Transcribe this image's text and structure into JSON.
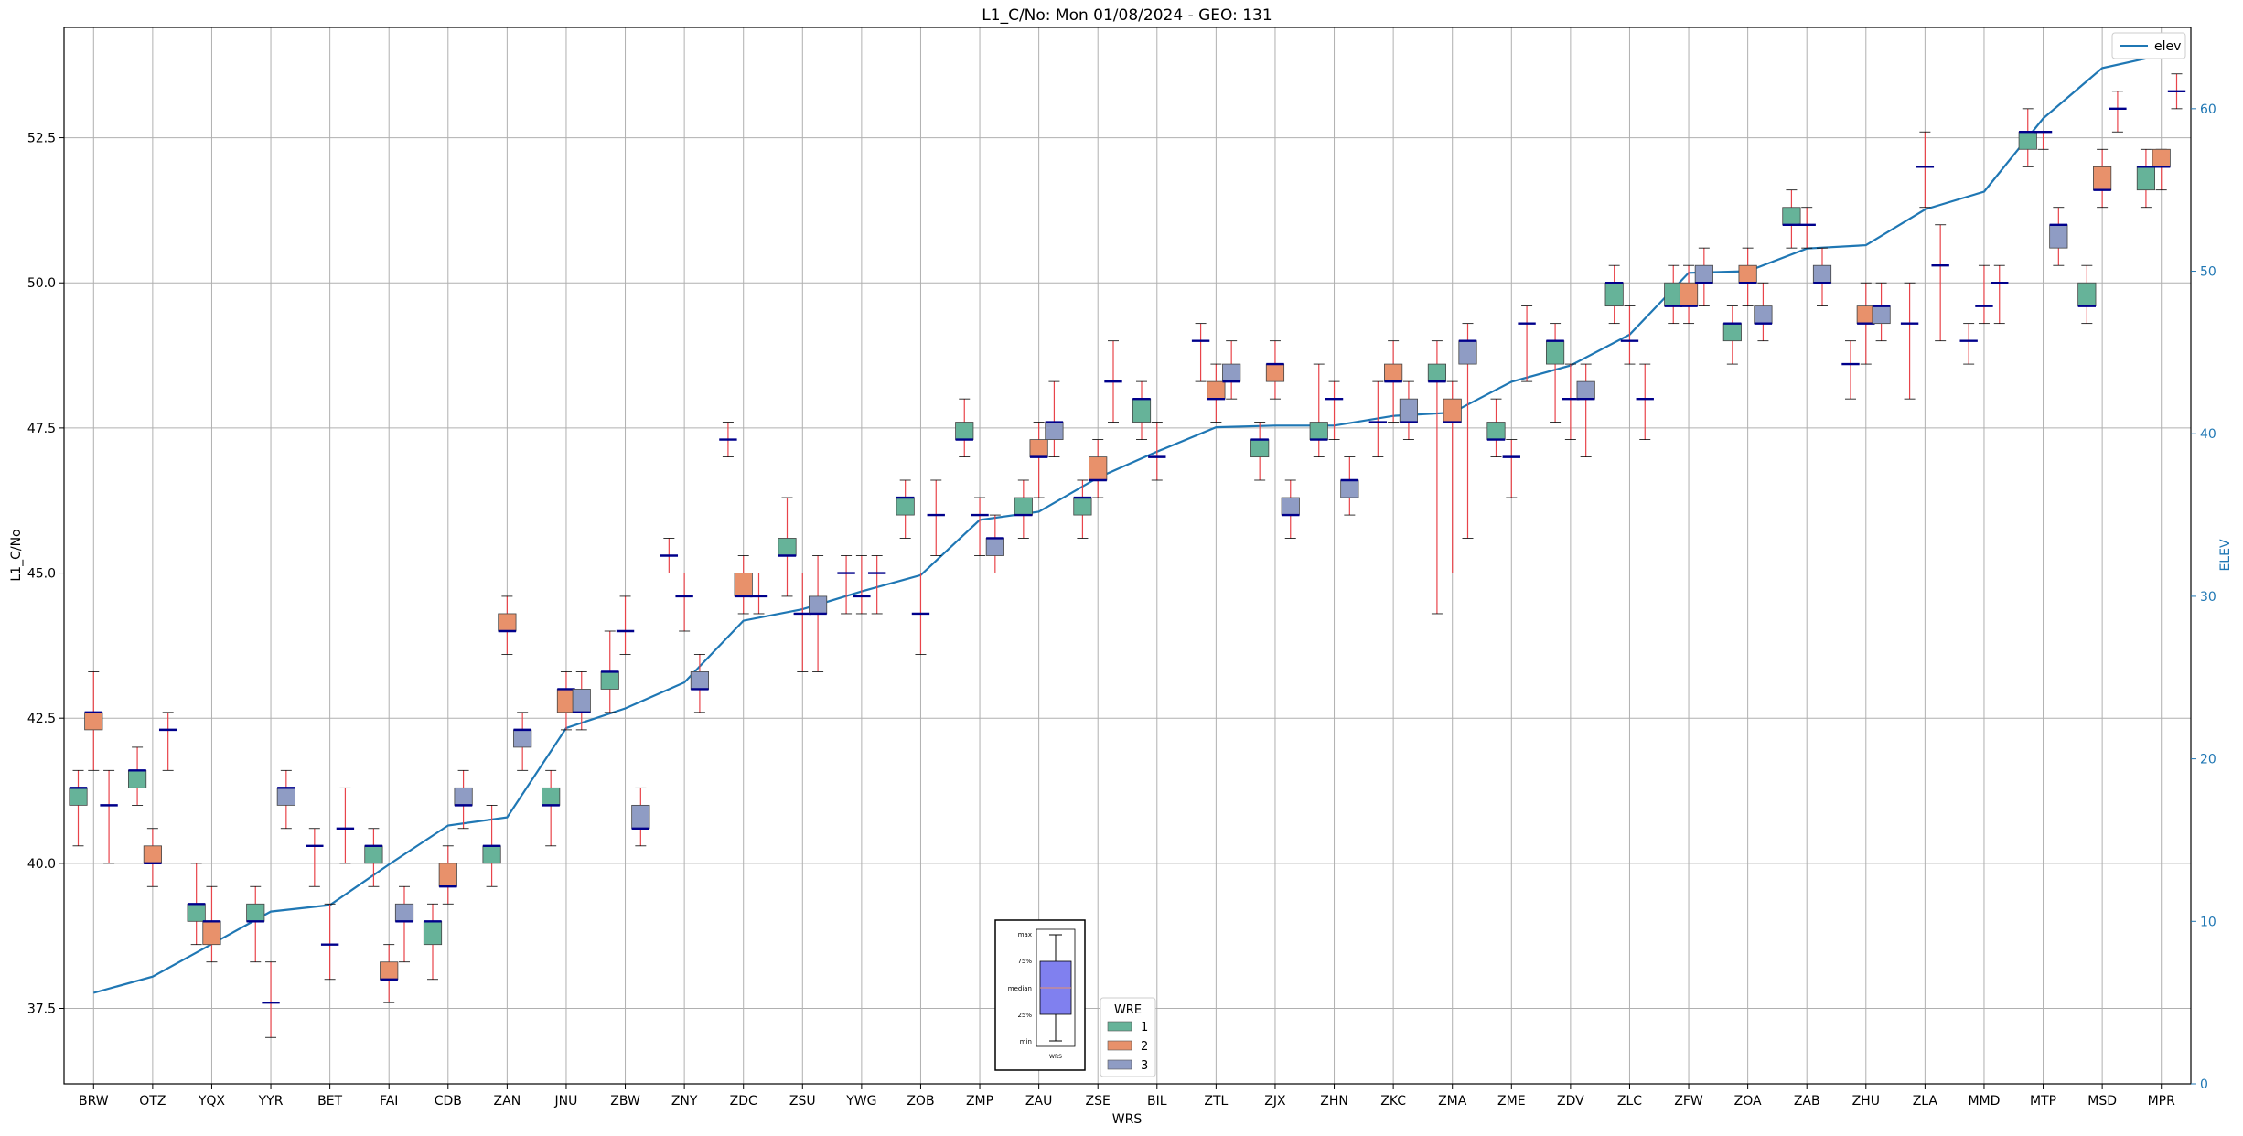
{
  "chart_data": {
    "type": "box",
    "title": "L1_C/No: Mon 01/08/2024 - GEO: 131",
    "xlabel": "WRS",
    "ylabel": "L1_C/No",
    "y2label": "ELEV",
    "ylim": [
      36.2,
      54.4
    ],
    "y2lim": [
      0,
      65
    ],
    "yticks": [
      "37.5",
      "40.0",
      "42.5",
      "45.0",
      "47.5",
      "50.0",
      "52.5"
    ],
    "y2ticks": [
      "0",
      "10",
      "20",
      "30",
      "40",
      "50",
      "60"
    ],
    "grid": true,
    "categories": [
      "BRW",
      "OTZ",
      "YQX",
      "YYR",
      "BET",
      "FAI",
      "CDB",
      "ZAN",
      "JNU",
      "ZBW",
      "ZNY",
      "ZDC",
      "ZSU",
      "YWG",
      "ZOB",
      "ZMP",
      "ZAU",
      "ZSE",
      "BIL",
      "ZTL",
      "ZJX",
      "ZHN",
      "ZKC",
      "ZMA",
      "ZME",
      "ZDV",
      "ZLC",
      "ZFW",
      "ZOA",
      "ZAB",
      "ZHU",
      "ZLA",
      "MMD",
      "MTP",
      "MSD",
      "MPR"
    ],
    "wre_colors": {
      "1": "#66b399",
      "2": "#e8916b",
      "3": "#8f9cc4"
    },
    "median_color": "#00008b",
    "whisker_color": "#e8444a",
    "boxes": [
      {
        "site": "BRW",
        "wre": 1,
        "min": 40.3,
        "q1": 41.0,
        "med": 41.3,
        "q3": 41.3,
        "max": 41.6
      },
      {
        "site": "BRW",
        "wre": 2,
        "min": 41.6,
        "q1": 42.3,
        "med": 42.6,
        "q3": 42.6,
        "max": 43.3
      },
      {
        "site": "BRW",
        "wre": 3,
        "min": 40.0,
        "q1": 41.0,
        "med": 41.0,
        "q3": 41.0,
        "max": 41.6
      },
      {
        "site": "OTZ",
        "wre": 1,
        "min": 41.0,
        "q1": 41.3,
        "med": 41.6,
        "q3": 41.6,
        "max": 42.0
      },
      {
        "site": "OTZ",
        "wre": 2,
        "min": 39.6,
        "q1": 40.0,
        "med": 40.0,
        "q3": 40.3,
        "max": 40.6
      },
      {
        "site": "OTZ",
        "wre": 3,
        "min": 41.6,
        "q1": 42.3,
        "med": 42.3,
        "q3": 42.3,
        "max": 42.6
      },
      {
        "site": "YQX",
        "wre": 1,
        "min": 38.6,
        "q1": 39.0,
        "med": 39.3,
        "q3": 39.3,
        "max": 40.0
      },
      {
        "site": "YQX",
        "wre": 2,
        "min": 38.3,
        "q1": 38.6,
        "med": 39.0,
        "q3": 39.0,
        "max": 39.6
      },
      {
        "site": "YYR",
        "wre": 1,
        "min": 38.3,
        "q1": 39.0,
        "med": 39.0,
        "q3": 39.3,
        "max": 39.6
      },
      {
        "site": "YYR",
        "wre": 2,
        "min": 37.0,
        "q1": 37.6,
        "med": 37.6,
        "q3": 37.6,
        "max": 38.3
      },
      {
        "site": "YYR",
        "wre": 3,
        "min": 40.6,
        "q1": 41.0,
        "med": 41.3,
        "q3": 41.3,
        "max": 41.6
      },
      {
        "site": "BET",
        "wre": 1,
        "min": 39.6,
        "q1": 40.3,
        "med": 40.3,
        "q3": 40.3,
        "max": 40.6
      },
      {
        "site": "BET",
        "wre": 2,
        "min": 38.0,
        "q1": 38.6,
        "med": 38.6,
        "q3": 38.6,
        "max": 39.3
      },
      {
        "site": "BET",
        "wre": 3,
        "min": 40.0,
        "q1": 40.6,
        "med": 40.6,
        "q3": 40.6,
        "max": 41.3
      },
      {
        "site": "FAI",
        "wre": 1,
        "min": 39.6,
        "q1": 40.0,
        "med": 40.3,
        "q3": 40.3,
        "max": 40.6
      },
      {
        "site": "FAI",
        "wre": 2,
        "min": 37.6,
        "q1": 38.0,
        "med": 38.0,
        "q3": 38.3,
        "max": 38.6
      },
      {
        "site": "FAI",
        "wre": 3,
        "min": 38.3,
        "q1": 39.0,
        "med": 39.0,
        "q3": 39.3,
        "max": 39.6
      },
      {
        "site": "CDB",
        "wre": 1,
        "min": 38.0,
        "q1": 38.6,
        "med": 39.0,
        "q3": 39.0,
        "max": 39.3
      },
      {
        "site": "CDB",
        "wre": 2,
        "min": 39.3,
        "q1": 39.6,
        "med": 39.6,
        "q3": 40.0,
        "max": 40.3
      },
      {
        "site": "CDB",
        "wre": 3,
        "min": 40.6,
        "q1": 41.0,
        "med": 41.0,
        "q3": 41.3,
        "max": 41.6
      },
      {
        "site": "ZAN",
        "wre": 1,
        "min": 39.6,
        "q1": 40.0,
        "med": 40.3,
        "q3": 40.3,
        "max": 41.0
      },
      {
        "site": "ZAN",
        "wre": 2,
        "min": 43.6,
        "q1": 44.0,
        "med": 44.0,
        "q3": 44.3,
        "max": 44.6
      },
      {
        "site": "ZAN",
        "wre": 3,
        "min": 41.6,
        "q1": 42.0,
        "med": 42.3,
        "q3": 42.3,
        "max": 42.6
      },
      {
        "site": "JNU",
        "wre": 1,
        "min": 40.3,
        "q1": 41.0,
        "med": 41.0,
        "q3": 41.3,
        "max": 41.6
      },
      {
        "site": "JNU",
        "wre": 2,
        "min": 42.3,
        "q1": 42.6,
        "med": 43.0,
        "q3": 43.0,
        "max": 43.3
      },
      {
        "site": "JNU",
        "wre": 3,
        "min": 42.3,
        "q1": 42.6,
        "med": 42.6,
        "q3": 43.0,
        "max": 43.3
      },
      {
        "site": "ZBW",
        "wre": 1,
        "min": 42.6,
        "q1": 43.0,
        "med": 43.3,
        "q3": 43.3,
        "max": 44.0
      },
      {
        "site": "ZBW",
        "wre": 2,
        "min": 43.6,
        "q1": 44.0,
        "med": 44.0,
        "q3": 44.0,
        "max": 44.6
      },
      {
        "site": "ZBW",
        "wre": 3,
        "min": 40.3,
        "q1": 40.6,
        "med": 40.6,
        "q3": 41.0,
        "max": 41.3
      },
      {
        "site": "ZNY",
        "wre": 1,
        "min": 45.0,
        "q1": 45.3,
        "med": 45.3,
        "q3": 45.3,
        "max": 45.6
      },
      {
        "site": "ZNY",
        "wre": 2,
        "min": 44.0,
        "q1": 44.6,
        "med": 44.6,
        "q3": 44.6,
        "max": 45.0
      },
      {
        "site": "ZNY",
        "wre": 3,
        "min": 42.6,
        "q1": 43.0,
        "med": 43.0,
        "q3": 43.3,
        "max": 43.6
      },
      {
        "site": "ZDC",
        "wre": 1,
        "min": 47.0,
        "q1": 47.3,
        "med": 47.3,
        "q3": 47.3,
        "max": 47.6
      },
      {
        "site": "ZDC",
        "wre": 2,
        "min": 44.3,
        "q1": 44.6,
        "med": 44.6,
        "q3": 45.0,
        "max": 45.3
      },
      {
        "site": "ZDC",
        "wre": 3,
        "min": 44.3,
        "q1": 44.6,
        "med": 44.6,
        "q3": 44.6,
        "max": 45.0
      },
      {
        "site": "ZSU",
        "wre": 1,
        "min": 44.6,
        "q1": 45.3,
        "med": 45.3,
        "q3": 45.6,
        "max": 46.3
      },
      {
        "site": "ZSU",
        "wre": 2,
        "min": 43.3,
        "q1": 44.3,
        "med": 44.3,
        "q3": 44.3,
        "max": 45.0
      },
      {
        "site": "ZSU",
        "wre": 3,
        "min": 43.3,
        "q1": 44.3,
        "med": 44.3,
        "q3": 44.6,
        "max": 45.3
      },
      {
        "site": "YWG",
        "wre": 1,
        "min": 44.3,
        "q1": 45.0,
        "med": 45.0,
        "q3": 45.0,
        "max": 45.3
      },
      {
        "site": "YWG",
        "wre": 2,
        "min": 44.3,
        "q1": 44.6,
        "med": 44.6,
        "q3": 44.6,
        "max": 45.3
      },
      {
        "site": "YWG",
        "wre": 3,
        "min": 44.3,
        "q1": 45.0,
        "med": 45.0,
        "q3": 45.0,
        "max": 45.3
      },
      {
        "site": "ZOB",
        "wre": 1,
        "min": 45.6,
        "q1": 46.0,
        "med": 46.3,
        "q3": 46.3,
        "max": 46.6
      },
      {
        "site": "ZOB",
        "wre": 2,
        "min": 43.6,
        "q1": 44.3,
        "med": 44.3,
        "q3": 44.3,
        "max": 45.0
      },
      {
        "site": "ZOB",
        "wre": 3,
        "min": 45.3,
        "q1": 46.0,
        "med": 46.0,
        "q3": 46.0,
        "max": 46.6
      },
      {
        "site": "ZMP",
        "wre": 1,
        "min": 47.0,
        "q1": 47.3,
        "med": 47.3,
        "q3": 47.6,
        "max": 48.0
      },
      {
        "site": "ZMP",
        "wre": 2,
        "min": 45.3,
        "q1": 46.0,
        "med": 46.0,
        "q3": 46.0,
        "max": 46.3
      },
      {
        "site": "ZMP",
        "wre": 3,
        "min": 45.0,
        "q1": 45.3,
        "med": 45.6,
        "q3": 45.6,
        "max": 46.0
      },
      {
        "site": "ZAU",
        "wre": 1,
        "min": 45.6,
        "q1": 46.0,
        "med": 46.0,
        "q3": 46.3,
        "max": 46.6
      },
      {
        "site": "ZAU",
        "wre": 2,
        "min": 46.3,
        "q1": 47.0,
        "med": 47.0,
        "q3": 47.3,
        "max": 47.6
      },
      {
        "site": "ZAU",
        "wre": 3,
        "min": 47.0,
        "q1": 47.3,
        "med": 47.6,
        "q3": 47.6,
        "max": 48.3
      },
      {
        "site": "ZSE",
        "wre": 1,
        "min": 45.6,
        "q1": 46.0,
        "med": 46.3,
        "q3": 46.3,
        "max": 46.6
      },
      {
        "site": "ZSE",
        "wre": 2,
        "min": 46.3,
        "q1": 46.6,
        "med": 46.6,
        "q3": 47.0,
        "max": 47.3
      },
      {
        "site": "ZSE",
        "wre": 3,
        "min": 47.6,
        "q1": 48.3,
        "med": 48.3,
        "q3": 48.3,
        "max": 49.0
      },
      {
        "site": "BIL",
        "wre": 1,
        "min": 47.3,
        "q1": 47.6,
        "med": 48.0,
        "q3": 48.0,
        "max": 48.3
      },
      {
        "site": "BIL",
        "wre": 2,
        "min": 46.6,
        "q1": 47.0,
        "med": 47.0,
        "q3": 47.0,
        "max": 47.6
      },
      {
        "site": "ZTL",
        "wre": 1,
        "min": 48.3,
        "q1": 49.0,
        "med": 49.0,
        "q3": 49.0,
        "max": 49.3
      },
      {
        "site": "ZTL",
        "wre": 2,
        "min": 47.6,
        "q1": 48.0,
        "med": 48.0,
        "q3": 48.3,
        "max": 48.6
      },
      {
        "site": "ZTL",
        "wre": 3,
        "min": 48.0,
        "q1": 48.3,
        "med": 48.3,
        "q3": 48.6,
        "max": 49.0
      },
      {
        "site": "ZJX",
        "wre": 1,
        "min": 46.6,
        "q1": 47.0,
        "med": 47.3,
        "q3": 47.3,
        "max": 47.6
      },
      {
        "site": "ZJX",
        "wre": 2,
        "min": 48.0,
        "q1": 48.3,
        "med": 48.6,
        "q3": 48.6,
        "max": 49.0
      },
      {
        "site": "ZJX",
        "wre": 3,
        "min": 45.6,
        "q1": 46.0,
        "med": 46.0,
        "q3": 46.3,
        "max": 46.6
      },
      {
        "site": "ZHN",
        "wre": 1,
        "min": 47.0,
        "q1": 47.3,
        "med": 47.3,
        "q3": 47.6,
        "max": 48.6
      },
      {
        "site": "ZHN",
        "wre": 2,
        "min": 47.3,
        "q1": 48.0,
        "med": 48.0,
        "q3": 48.0,
        "max": 48.3
      },
      {
        "site": "ZHN",
        "wre": 3,
        "min": 46.0,
        "q1": 46.3,
        "med": 46.6,
        "q3": 46.6,
        "max": 47.0
      },
      {
        "site": "ZKC",
        "wre": 1,
        "min": 47.0,
        "q1": 47.6,
        "med": 47.6,
        "q3": 47.6,
        "max": 48.3
      },
      {
        "site": "ZKC",
        "wre": 2,
        "min": 47.6,
        "q1": 48.3,
        "med": 48.3,
        "q3": 48.6,
        "max": 49.0
      },
      {
        "site": "ZKC",
        "wre": 3,
        "min": 47.3,
        "q1": 47.6,
        "med": 47.6,
        "q3": 48.0,
        "max": 48.3
      },
      {
        "site": "ZMA",
        "wre": 1,
        "min": 44.3,
        "q1": 48.3,
        "med": 48.3,
        "q3": 48.6,
        "max": 49.0
      },
      {
        "site": "ZMA",
        "wre": 2,
        "min": 45.0,
        "q1": 47.6,
        "med": 47.6,
        "q3": 48.0,
        "max": 48.3
      },
      {
        "site": "ZMA",
        "wre": 3,
        "min": 45.6,
        "q1": 48.6,
        "med": 49.0,
        "q3": 49.0,
        "max": 49.3
      },
      {
        "site": "ZME",
        "wre": 1,
        "min": 47.0,
        "q1": 47.3,
        "med": 47.3,
        "q3": 47.6,
        "max": 48.0
      },
      {
        "site": "ZME",
        "wre": 2,
        "min": 46.3,
        "q1": 47.0,
        "med": 47.0,
        "q3": 47.0,
        "max": 47.3
      },
      {
        "site": "ZME",
        "wre": 3,
        "min": 48.3,
        "q1": 49.3,
        "med": 49.3,
        "q3": 49.3,
        "max": 49.6
      },
      {
        "site": "ZDV",
        "wre": 1,
        "min": 47.6,
        "q1": 48.6,
        "med": 49.0,
        "q3": 49.0,
        "max": 49.3
      },
      {
        "site": "ZDV",
        "wre": 2,
        "min": 47.3,
        "q1": 48.0,
        "med": 48.0,
        "q3": 48.0,
        "max": 48.6
      },
      {
        "site": "ZDV",
        "wre": 3,
        "min": 47.0,
        "q1": 48.0,
        "med": 48.0,
        "q3": 48.3,
        "max": 48.6
      },
      {
        "site": "ZLC",
        "wre": 1,
        "min": 49.3,
        "q1": 49.6,
        "med": 50.0,
        "q3": 50.0,
        "max": 50.3
      },
      {
        "site": "ZLC",
        "wre": 2,
        "min": 48.6,
        "q1": 49.0,
        "med": 49.0,
        "q3": 49.0,
        "max": 49.6
      },
      {
        "site": "ZLC",
        "wre": 3,
        "min": 47.3,
        "q1": 48.0,
        "med": 48.0,
        "q3": 48.0,
        "max": 48.6
      },
      {
        "site": "ZFW",
        "wre": 1,
        "min": 49.3,
        "q1": 49.6,
        "med": 49.6,
        "q3": 50.0,
        "max": 50.3
      },
      {
        "site": "ZFW",
        "wre": 2,
        "min": 49.3,
        "q1": 49.6,
        "med": 49.6,
        "q3": 50.0,
        "max": 50.3
      },
      {
        "site": "ZFW",
        "wre": 3,
        "min": 49.6,
        "q1": 50.0,
        "med": 50.0,
        "q3": 50.3,
        "max": 50.6
      },
      {
        "site": "ZOA",
        "wre": 1,
        "min": 48.6,
        "q1": 49.0,
        "med": 49.3,
        "q3": 49.3,
        "max": 49.6
      },
      {
        "site": "ZOA",
        "wre": 2,
        "min": 49.6,
        "q1": 50.0,
        "med": 50.0,
        "q3": 50.3,
        "max": 50.6
      },
      {
        "site": "ZOA",
        "wre": 3,
        "min": 49.0,
        "q1": 49.3,
        "med": 49.3,
        "q3": 49.6,
        "max": 50.0
      },
      {
        "site": "ZAB",
        "wre": 1,
        "min": 50.6,
        "q1": 51.0,
        "med": 51.0,
        "q3": 51.3,
        "max": 51.6
      },
      {
        "site": "ZAB",
        "wre": 2,
        "min": 50.6,
        "q1": 51.0,
        "med": 51.0,
        "q3": 51.0,
        "max": 51.3
      },
      {
        "site": "ZAB",
        "wre": 3,
        "min": 49.6,
        "q1": 50.0,
        "med": 50.0,
        "q3": 50.3,
        "max": 50.6
      },
      {
        "site": "ZHU",
        "wre": 1,
        "min": 48.0,
        "q1": 48.6,
        "med": 48.6,
        "q3": 48.6,
        "max": 49.0
      },
      {
        "site": "ZHU",
        "wre": 2,
        "min": 48.6,
        "q1": 49.3,
        "med": 49.3,
        "q3": 49.6,
        "max": 50.0
      },
      {
        "site": "ZHU",
        "wre": 3,
        "min": 49.0,
        "q1": 49.3,
        "med": 49.6,
        "q3": 49.6,
        "max": 50.0
      },
      {
        "site": "ZLA",
        "wre": 1,
        "min": 48.0,
        "q1": 49.3,
        "med": 49.3,
        "q3": 49.3,
        "max": 50.0
      },
      {
        "site": "ZLA",
        "wre": 2,
        "min": 51.3,
        "q1": 52.0,
        "med": 52.0,
        "q3": 52.0,
        "max": 52.6
      },
      {
        "site": "ZLA",
        "wre": 3,
        "min": 49.0,
        "q1": 50.3,
        "med": 50.3,
        "q3": 50.3,
        "max": 51.0
      },
      {
        "site": "MMD",
        "wre": 1,
        "min": 48.6,
        "q1": 49.0,
        "med": 49.0,
        "q3": 49.0,
        "max": 49.3
      },
      {
        "site": "MMD",
        "wre": 2,
        "min": 49.3,
        "q1": 49.6,
        "med": 49.6,
        "q3": 49.6,
        "max": 50.3
      },
      {
        "site": "MMD",
        "wre": 3,
        "min": 49.3,
        "q1": 50.0,
        "med": 50.0,
        "q3": 50.0,
        "max": 50.3
      },
      {
        "site": "MTP",
        "wre": 1,
        "min": 52.0,
        "q1": 52.3,
        "med": 52.6,
        "q3": 52.6,
        "max": 53.0
      },
      {
        "site": "MTP",
        "wre": 2,
        "min": 52.3,
        "q1": 52.6,
        "med": 52.6,
        "q3": 52.6,
        "max": 52.6
      },
      {
        "site": "MTP",
        "wre": 3,
        "min": 50.3,
        "q1": 50.6,
        "med": 51.0,
        "q3": 51.0,
        "max": 51.3
      },
      {
        "site": "MSD",
        "wre": 1,
        "min": 49.3,
        "q1": 49.6,
        "med": 49.6,
        "q3": 50.0,
        "max": 50.3
      },
      {
        "site": "MSD",
        "wre": 2,
        "min": 51.3,
        "q1": 51.6,
        "med": 51.6,
        "q3": 52.0,
        "max": 52.3
      },
      {
        "site": "MSD",
        "wre": 3,
        "min": 52.6,
        "q1": 53.0,
        "med": 53.0,
        "q3": 53.0,
        "max": 53.3
      },
      {
        "site": "MPR",
        "wre": 1,
        "min": 51.3,
        "q1": 51.6,
        "med": 52.0,
        "q3": 52.0,
        "max": 52.3
      },
      {
        "site": "MPR",
        "wre": 2,
        "min": 51.6,
        "q1": 52.0,
        "med": 52.0,
        "q3": 52.3,
        "max": 52.3
      },
      {
        "site": "MPR",
        "wre": 3,
        "min": 53.0,
        "q1": 53.3,
        "med": 53.3,
        "q3": 53.3,
        "max": 53.6
      }
    ],
    "elev_series": {
      "name": "elev",
      "color": "#1f77b4",
      "values": [
        5.6,
        6.6,
        8.6,
        10.6,
        11.0,
        13.5,
        15.9,
        16.4,
        21.9,
        23.1,
        24.7,
        28.5,
        29.2,
        30.3,
        31.3,
        34.7,
        35.2,
        37.3,
        38.9,
        40.4,
        40.5,
        40.5,
        41.1,
        41.3,
        43.2,
        44.2,
        46.1,
        49.9,
        50.0,
        51.4,
        51.6,
        53.8,
        54.9,
        59.4,
        62.5,
        63.3
      ]
    },
    "legend_elev": {
      "label": "elev",
      "position": "upper-right"
    },
    "legend_wre": {
      "title": "WRE",
      "labels": [
        "1",
        "2",
        "3"
      ],
      "position": "lower-center"
    },
    "legend_boxkey": {
      "labels": [
        "max",
        "75%",
        "median",
        "25%",
        "min"
      ],
      "xlabel": "WRS"
    }
  }
}
